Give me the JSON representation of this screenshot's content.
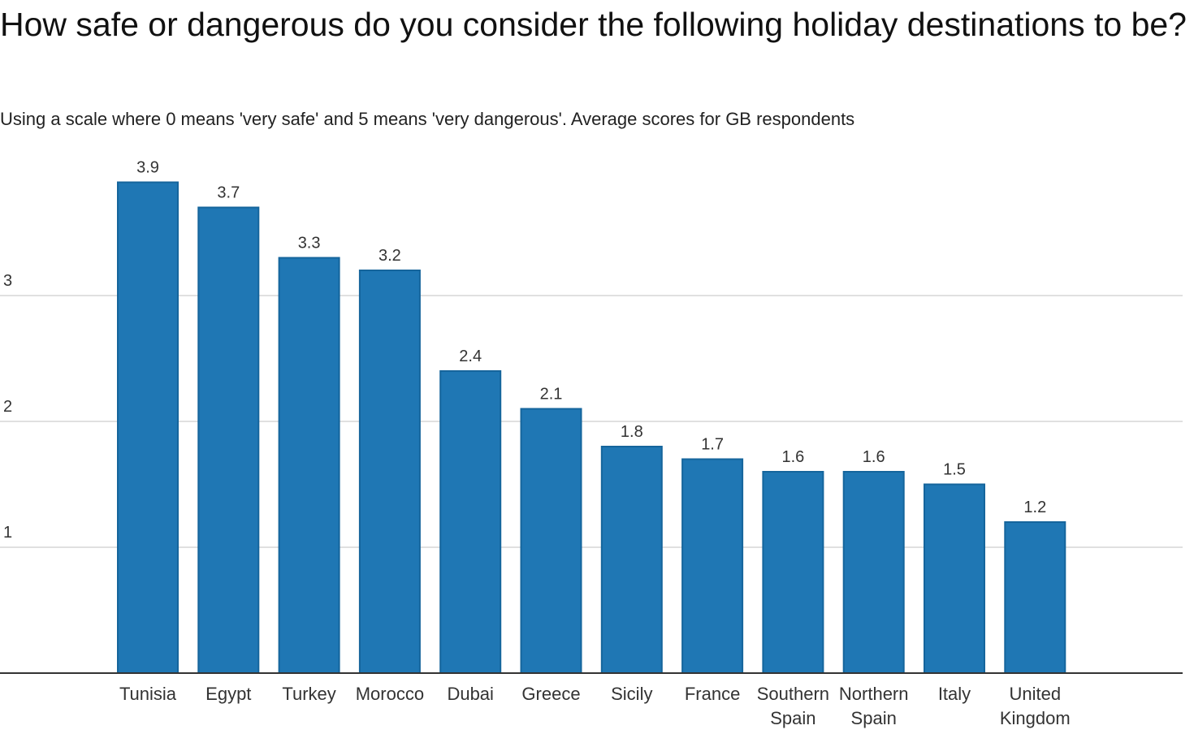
{
  "chart_data": {
    "type": "bar",
    "title": "How safe or dangerous do you consider the following holiday destinations to be?",
    "subtitle": "Using a scale where 0 means 'very safe' and 5 means 'very dangerous'. Average scores for GB respondents",
    "xlabel": "",
    "ylabel": "",
    "categories": [
      "Tunisia",
      "Egypt",
      "Turkey",
      "Morocco",
      "Dubai",
      "Greece",
      "Sicily",
      "France",
      "Southern Spain",
      "Northern Spain",
      "Italy",
      "United Kingdom"
    ],
    "values": [
      3.9,
      3.7,
      3.3,
      3.2,
      2.4,
      2.1,
      1.8,
      1.7,
      1.6,
      1.6,
      1.5,
      1.2
    ],
    "value_labels": [
      "3.9",
      "3.7",
      "3.3",
      "3.2",
      "2.4",
      "2.1",
      "1.8",
      "1.7",
      "1.6",
      "1.6",
      "1.5",
      "1.2"
    ],
    "y_ticks": [
      1,
      2,
      3
    ],
    "ylim": [
      0,
      4
    ],
    "grid": true,
    "legend": "none",
    "colors": {
      "bar": "#1f77b4",
      "grid": "#d6d6d6",
      "axis": "#333333"
    }
  }
}
